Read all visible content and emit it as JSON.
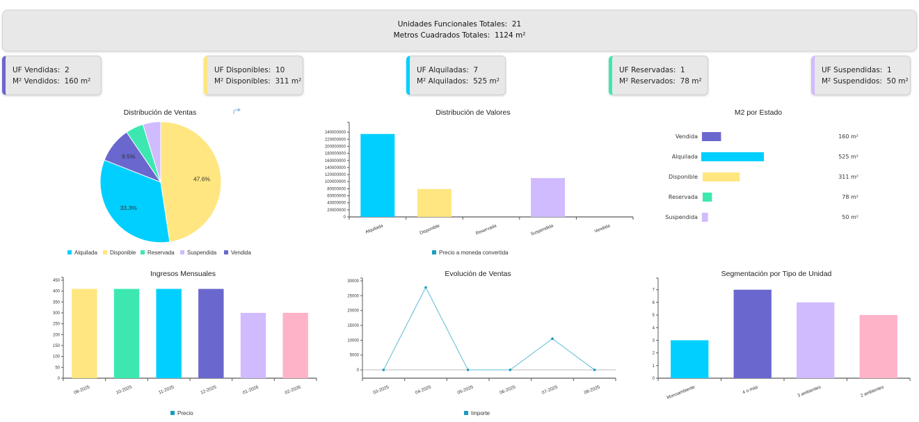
{
  "summary": {
    "total_units_label": "Unidades Funcionales Totales:",
    "total_units_value": "21",
    "total_m2_label": "Metros Cuadrados Totales:",
    "total_m2_value": "1124 m²"
  },
  "cards": [
    {
      "units_label": "UF Vendidas:",
      "units_value": "2",
      "m2_label": "M² Vendidos:",
      "m2_value": "160 m²",
      "color": "#6a67ce"
    },
    {
      "units_label": "UF Disponibles:",
      "units_value": "10",
      "m2_label": "M² Disponibles:",
      "m2_value": "311 m²",
      "color": "#ffe680"
    },
    {
      "units_label": "UF Alquiladas:",
      "units_value": "7",
      "m2_label": "M² Alquilados:",
      "m2_value": "525 m²",
      "color": "#00cfff"
    },
    {
      "units_label": "UF Reservadas:",
      "units_value": "1",
      "m2_label": "M² Reservados:",
      "m2_value": "78 m²",
      "color": "#3de8b0"
    },
    {
      "units_label": "UF Suspendidas:",
      "units_value": "1",
      "m2_label": "M² Suspendidos:",
      "m2_value": "50 m²",
      "color": "#d0bbff"
    }
  ],
  "colors": {
    "vendida": "#6a67ce",
    "disponible": "#ffe680",
    "alquilada": "#00cfff",
    "reservada": "#3de8b0",
    "suspendida": "#d0bbff",
    "pink": "#ffb3c8",
    "series": "#1a9bbf",
    "line": "#5bbcd6"
  },
  "chart_data": [
    {
      "id": "pie",
      "type": "pie",
      "title": "Distribución de Ventas",
      "categories": [
        "Alquilada",
        "Disponible",
        "Reservada",
        "Suspendida",
        "Vendida"
      ],
      "values": [
        7,
        10,
        1,
        1,
        2
      ],
      "labels_shown": {
        "Disponible": "47.6%",
        "Alquilada": "33.3%",
        "Vendida": "9.5%"
      },
      "legend": [
        "Alquilada",
        "Disponible",
        "Reservada",
        "Suspendida",
        "Vendida"
      ],
      "legend_position": "bottom",
      "share_icon": "share-icon"
    },
    {
      "id": "valores",
      "type": "bar",
      "title": "Distribución de Valores",
      "categories": [
        "Alquilada",
        "Disponible",
        "Reservada",
        "Suspendida",
        "Vendida"
      ],
      "values": [
        235000000,
        79000000,
        0,
        110000000,
        0
      ],
      "yticks": [
        0,
        20000000,
        40000000,
        60000000,
        80000000,
        100000000,
        120000000,
        140000000,
        160000000,
        180000000,
        200000000,
        220000000,
        240000000
      ],
      "ylim": [
        0,
        260000000
      ],
      "legend": [
        "Precio a moneda convertida"
      ],
      "legend_position": "bottom"
    },
    {
      "id": "m2",
      "type": "bar",
      "orientation": "horizontal",
      "title": "M2 por Estado",
      "categories": [
        "Vendida",
        "Alquilada",
        "Disponible",
        "Reservada",
        "Suspendida"
      ],
      "values": [
        160,
        525,
        311,
        78,
        50
      ],
      "value_labels": [
        "160 m²",
        "525 m²",
        "311 m²",
        "78 m²",
        "50 m²"
      ]
    },
    {
      "id": "ingresos",
      "type": "bar",
      "title": "Ingresos Mensuales",
      "categories": [
        "09-2025",
        "10-2025",
        "11-2025",
        "12-2025",
        "01-2026",
        "02-2026"
      ],
      "values": [
        410,
        410,
        410,
        410,
        300,
        300
      ],
      "yticks": [
        0,
        50,
        100,
        150,
        200,
        250,
        300,
        350,
        400,
        450
      ],
      "ylim": [
        0,
        450
      ],
      "legend": [
        "Precio"
      ],
      "legend_position": "bottom"
    },
    {
      "id": "evolucion",
      "type": "line",
      "title": "Evolución de Ventas",
      "categories": [
        "03-2025",
        "04-2025",
        "05-2025",
        "06-2025",
        "07-2025",
        "08-2025"
      ],
      "values": [
        0,
        27800,
        0,
        0,
        10500,
        0
      ],
      "yticks": [
        0,
        5000,
        10000,
        15000,
        20000,
        25000,
        30000
      ],
      "ylim": [
        -2800,
        30000
      ],
      "legend": [
        "Importe"
      ],
      "legend_position": "bottom"
    },
    {
      "id": "segmentacion",
      "type": "bar",
      "title": "Segmentación por Tipo de Unidad",
      "categories": [
        "Monoambiente",
        "4 o más",
        "3 ambientes",
        "2 ambientes"
      ],
      "values": [
        3,
        7,
        6,
        5
      ],
      "yticks": [
        0,
        1,
        2,
        3,
        4,
        5,
        6,
        7
      ],
      "ylim": [
        0,
        7.7
      ]
    }
  ]
}
